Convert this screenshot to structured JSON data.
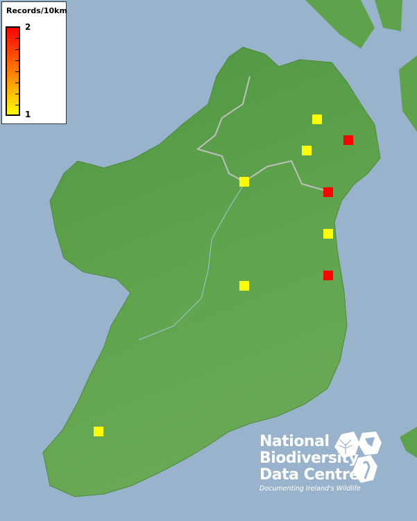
{
  "legend": {
    "title": "Records/10km",
    "max_label": "2",
    "min_label": "1",
    "color_max": "#ff0000",
    "color_min": "#ffff00"
  },
  "colors": {
    "sea": "#99b3cc",
    "land": "#5c9e4c",
    "border": "#b8b8b8",
    "river": "#a8c4dc"
  },
  "records": [
    {
      "count": 1,
      "color": "#ffff00",
      "location": "Lough Neagh north"
    },
    {
      "count": 2,
      "color": "#ff0000",
      "location": "Co. Antrim east"
    },
    {
      "count": 1,
      "color": "#ffff00",
      "location": "Lough Neagh south"
    },
    {
      "count": 1,
      "color": "#ffff00",
      "location": "Upper Erne"
    },
    {
      "count": 2,
      "color": "#ff0000",
      "location": "Dundalk"
    },
    {
      "count": 1,
      "color": "#ffff00",
      "location": "Drogheda coast"
    },
    {
      "count": 2,
      "color": "#ff0000",
      "location": "Dublin"
    },
    {
      "count": 1,
      "color": "#ffff00",
      "location": "Midlands"
    },
    {
      "count": 1,
      "color": "#ffff00",
      "location": "Kerry"
    }
  ],
  "logo": {
    "line1": "National",
    "line2": "Biodiversity",
    "line3": "Data Centre",
    "tagline": "Documenting Ireland's Wildlife"
  }
}
